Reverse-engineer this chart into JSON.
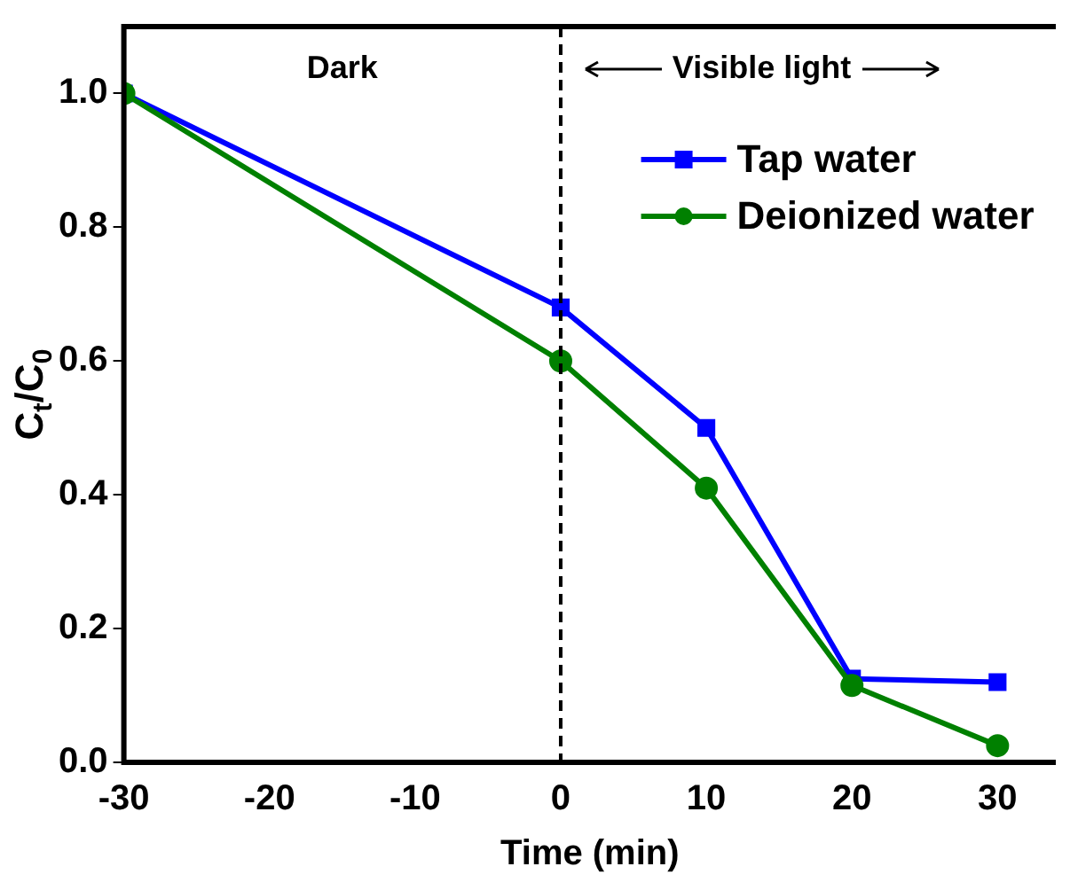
{
  "chart_data": {
    "type": "line",
    "xlabel": "Time (min)",
    "ylabel": "C$_{t}$/C$_{0}$",
    "x": [
      -30,
      0,
      10,
      20,
      30
    ],
    "series": [
      {
        "name": "Tap water",
        "color": "#0000ff",
        "marker": "square",
        "values": [
          1.0,
          0.68,
          0.5,
          0.125,
          0.12
        ]
      },
      {
        "name": "Deionized water",
        "color": "#008000",
        "marker": "circle",
        "values": [
          1.0,
          0.6,
          0.41,
          0.115,
          0.025
        ]
      }
    ],
    "xlim": [
      -30,
      34
    ],
    "xticks": [
      -30,
      -20,
      -10,
      0,
      10,
      20,
      30
    ],
    "ylim": [
      0,
      1.1
    ],
    "yticks": [
      {
        "value": 0,
        "label": "0.0"
      },
      0.2,
      0.4,
      0.6,
      0.8,
      {
        "value": 1,
        "label": "1.0"
      }
    ],
    "ref_lines": [
      {
        "axis": "x",
        "value": 0,
        "color": "#000000",
        "line_style": "dashed"
      }
    ],
    "annotations": [
      "Dark",
      "Visible light"
    ],
    "legend": "top right",
    "grid": false,
    "line_style": "solid"
  }
}
